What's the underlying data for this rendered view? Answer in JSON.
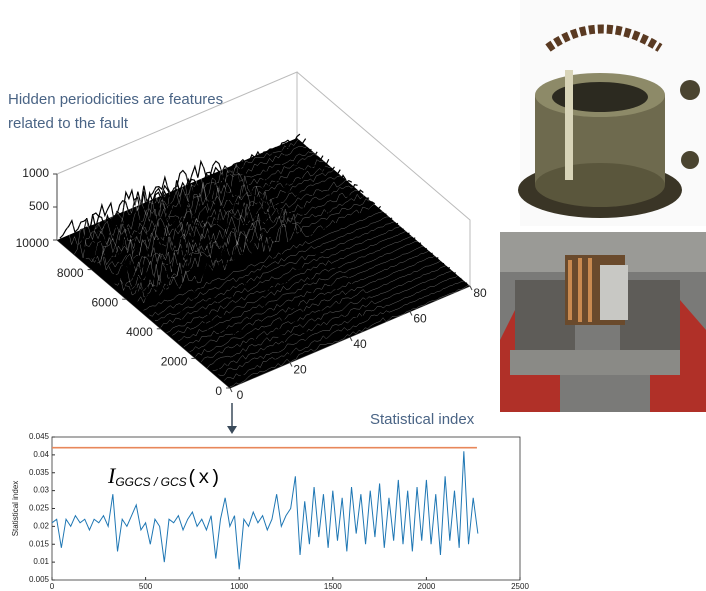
{
  "annotations": [
    "Hidden periodicities are features",
    "related to the fault",
    "Statistical index"
  ],
  "chart_data": [
    {
      "type": "surface",
      "xlim": [
        0,
        80
      ],
      "xticks": [
        0,
        20,
        40,
        60,
        80
      ],
      "ylim": [
        0,
        10000
      ],
      "yticks": [
        0,
        2000,
        4000,
        6000,
        8000,
        10000
      ],
      "zlim": [
        0,
        1000
      ],
      "zticks": [
        500,
        1000
      ],
      "color": "#000000"
    },
    {
      "type": "line",
      "ylabel": "Statistical index",
      "formula": [
        "I",
        "GGCS / GCS",
        "(x)"
      ],
      "xlim": [
        0,
        2500
      ],
      "xticks": [
        0,
        500,
        1000,
        1500,
        2000,
        2500
      ],
      "ylim": [
        0.005,
        0.045
      ],
      "yticks": [
        0.005,
        0.01,
        0.015,
        0.02,
        0.025,
        0.03,
        0.035,
        0.04,
        0.045
      ],
      "series": [
        {
          "color": "#e8875a",
          "x": [
            0,
            2270
          ],
          "values": [
            0.042,
            0.042
          ]
        },
        {
          "color": "#1f77b4",
          "x": [
            0,
            25,
            50,
            75,
            100,
            125,
            150,
            175,
            200,
            225,
            250,
            275,
            300,
            325,
            350,
            375,
            400,
            425,
            450,
            475,
            500,
            525,
            550,
            575,
            600,
            625,
            650,
            675,
            700,
            725,
            750,
            775,
            800,
            825,
            850,
            875,
            900,
            925,
            950,
            975,
            1000,
            1025,
            1050,
            1075,
            1100,
            1125,
            1150,
            1175,
            1200,
            1225,
            1250,
            1275,
            1300,
            1325,
            1350,
            1375,
            1400,
            1425,
            1450,
            1475,
            1500,
            1525,
            1550,
            1575,
            1600,
            1625,
            1650,
            1675,
            1700,
            1725,
            1750,
            1775,
            1800,
            1825,
            1850,
            1875,
            1900,
            1925,
            1950,
            1975,
            2000,
            2025,
            2050,
            2075,
            2100,
            2125,
            2150,
            2175,
            2200,
            2225,
            2250,
            2275
          ],
          "values": [
            0.021,
            0.022,
            0.014,
            0.022,
            0.02,
            0.023,
            0.021,
            0.022,
            0.019,
            0.022,
            0.021,
            0.023,
            0.02,
            0.029,
            0.013,
            0.022,
            0.02,
            0.023,
            0.026,
            0.019,
            0.021,
            0.015,
            0.022,
            0.02,
            0.01,
            0.022,
            0.021,
            0.023,
            0.019,
            0.022,
            0.024,
            0.02,
            0.022,
            0.019,
            0.023,
            0.011,
            0.022,
            0.028,
            0.02,
            0.023,
            0.008,
            0.022,
            0.02,
            0.024,
            0.021,
            0.023,
            0.019,
            0.022,
            0.029,
            0.02,
            0.023,
            0.025,
            0.034,
            0.012,
            0.027,
            0.015,
            0.031,
            0.017,
            0.029,
            0.014,
            0.03,
            0.016,
            0.028,
            0.013,
            0.031,
            0.018,
            0.029,
            0.015,
            0.03,
            0.017,
            0.032,
            0.014,
            0.028,
            0.016,
            0.033,
            0.015,
            0.03,
            0.013,
            0.031,
            0.016,
            0.033,
            0.015,
            0.029,
            0.012,
            0.034,
            0.016,
            0.03,
            0.014,
            0.041,
            0.015,
            0.028,
            0.018
          ]
        }
      ]
    }
  ]
}
